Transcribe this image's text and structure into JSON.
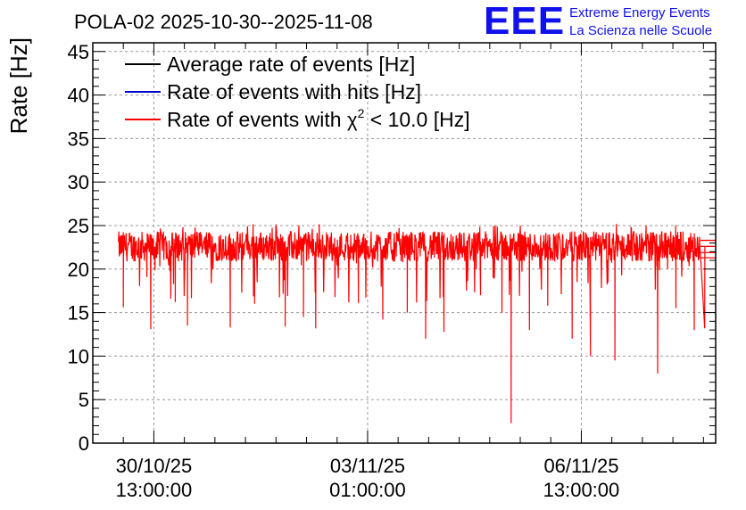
{
  "chart_data": {
    "type": "line",
    "title": "POLA-02 2025-10-30--2025-11-08",
    "ylabel": "Rate [Hz]",
    "xlabel": "",
    "ylim": [
      0,
      46
    ],
    "xlim": [
      -1.0,
      9.2
    ],
    "y_ticks": [
      0,
      5,
      10,
      15,
      20,
      25,
      30,
      35,
      40,
      45
    ],
    "y_tick_labels": [
      "0",
      "5",
      "10",
      "15",
      "20",
      "25",
      "30",
      "35",
      "40",
      "45"
    ],
    "x_ticks": [
      {
        "x": 0,
        "line1": "30/10/25",
        "line2": "13:00:00"
      },
      {
        "x": 3.5,
        "line1": "03/11/25",
        "line2": "01:00:00"
      },
      {
        "x": 7,
        "line1": "06/11/25",
        "line2": "13:00:00"
      }
    ],
    "grid": true,
    "legend_position": "top-left",
    "legend": [
      {
        "name": "Average rate of events [Hz]",
        "color": "#000000"
      },
      {
        "name": "Rate of events with hits [Hz]",
        "color": "#0000cc"
      },
      {
        "name": "Rate of events with χ² < 10.0 [Hz]",
        "color": "#ff0000",
        "chi_prefix": "Rate of events with ",
        "chi_suffix": " < 10.0 [Hz]"
      }
    ],
    "series": [
      {
        "name": "Rate of events with χ² < 10.0 [Hz]",
        "color": "#ff0000",
        "x_start": -0.58,
        "x_end": 9.2,
        "baseline": 22.6,
        "band_low": 20.7,
        "band_high": 24.0,
        "band_end_x": 9.2,
        "dips": [
          {
            "x": -0.5,
            "y": 15.6
          },
          {
            "x": -0.05,
            "y": 13.1
          },
          {
            "x": 0.35,
            "y": 16.2
          },
          {
            "x": 0.55,
            "y": 13.5
          },
          {
            "x": 1.25,
            "y": 13.3
          },
          {
            "x": 1.65,
            "y": 16.0
          },
          {
            "x": 2.15,
            "y": 13.4
          },
          {
            "x": 2.45,
            "y": 14.5
          },
          {
            "x": 2.65,
            "y": 13.2
          },
          {
            "x": 3.35,
            "y": 16.1
          },
          {
            "x": 3.75,
            "y": 14.2
          },
          {
            "x": 4.15,
            "y": 15.0
          },
          {
            "x": 4.45,
            "y": 12.0
          },
          {
            "x": 4.75,
            "y": 12.8
          },
          {
            "x": 5.35,
            "y": 17.0
          },
          {
            "x": 5.7,
            "y": 15.0
          },
          {
            "x": 5.85,
            "y": 2.3
          },
          {
            "x": 6.15,
            "y": 13.0
          },
          {
            "x": 6.45,
            "y": 15.8
          },
          {
            "x": 6.85,
            "y": 12.0
          },
          {
            "x": 7.15,
            "y": 10.0
          },
          {
            "x": 7.55,
            "y": 9.5
          },
          {
            "x": 8.25,
            "y": 8.0
          },
          {
            "x": 8.85,
            "y": 13.0
          },
          {
            "x": 9.02,
            "y": 13.2
          },
          {
            "x": 8.55,
            "y": 15.5
          }
        ]
      }
    ]
  },
  "logo": {
    "text": "EEE",
    "line1": "Extreme Energy Events",
    "line2": "La Scienza nelle Scuole",
    "color": "#1111ee"
  },
  "chi_symbol": "χ",
  "chi_sup": "2"
}
